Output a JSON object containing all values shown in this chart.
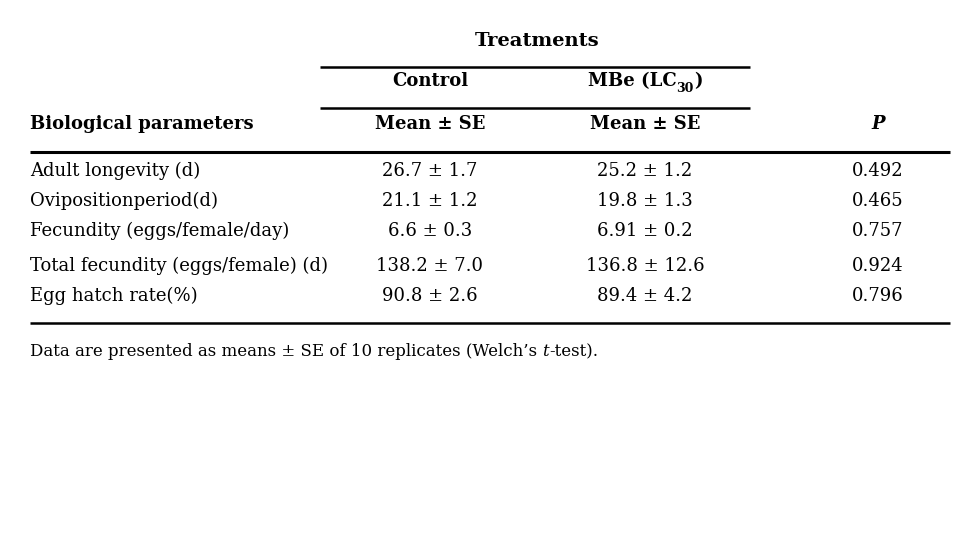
{
  "title": "Treatments",
  "col_header1": "Control",
  "col_header2_parts": [
    "MBe (LC",
    "30",
    ")"
  ],
  "col_header1_sub": "Mean ± SE",
  "col_header2_sub": "Mean ± SE",
  "col_header3": "P",
  "row_header": "Biological parameters",
  "rows": [
    {
      "param": "Adult longevity (d)",
      "control": "26.7 ± 1.7",
      "mbe": "25.2 ± 1.2",
      "p": "0.492"
    },
    {
      "param": "Ovipositionperiod(d)",
      "control": "21.1 ± 1.2",
      "mbe": "19.8 ± 1.3",
      "p": "0.465"
    },
    {
      "param": "Fecundity (eggs/female/day)",
      "control": "6.6 ± 0.3",
      "mbe": "6.91 ± 0.2",
      "p": "0.757"
    },
    {
      "param": "Total fecundity (eggs/female) (d)",
      "control": "138.2 ± 7.0",
      "mbe": "136.8 ± 12.6",
      "p": "0.924"
    },
    {
      "param": "Egg hatch rate(%)",
      "control": "90.8 ± 2.6",
      "mbe": "89.4 ± 4.2",
      "p": "0.796"
    }
  ],
  "footnote_normal1": "Data are presented as means ± SE of 10 replicates (Welch’s ",
  "footnote_italic": "t",
  "footnote_normal2": "-test).",
  "bg_color": "#ffffff",
  "text_color": "#000000",
  "fs_title": 14,
  "fs_header": 13,
  "fs_body": 13,
  "fs_footnote": 12
}
